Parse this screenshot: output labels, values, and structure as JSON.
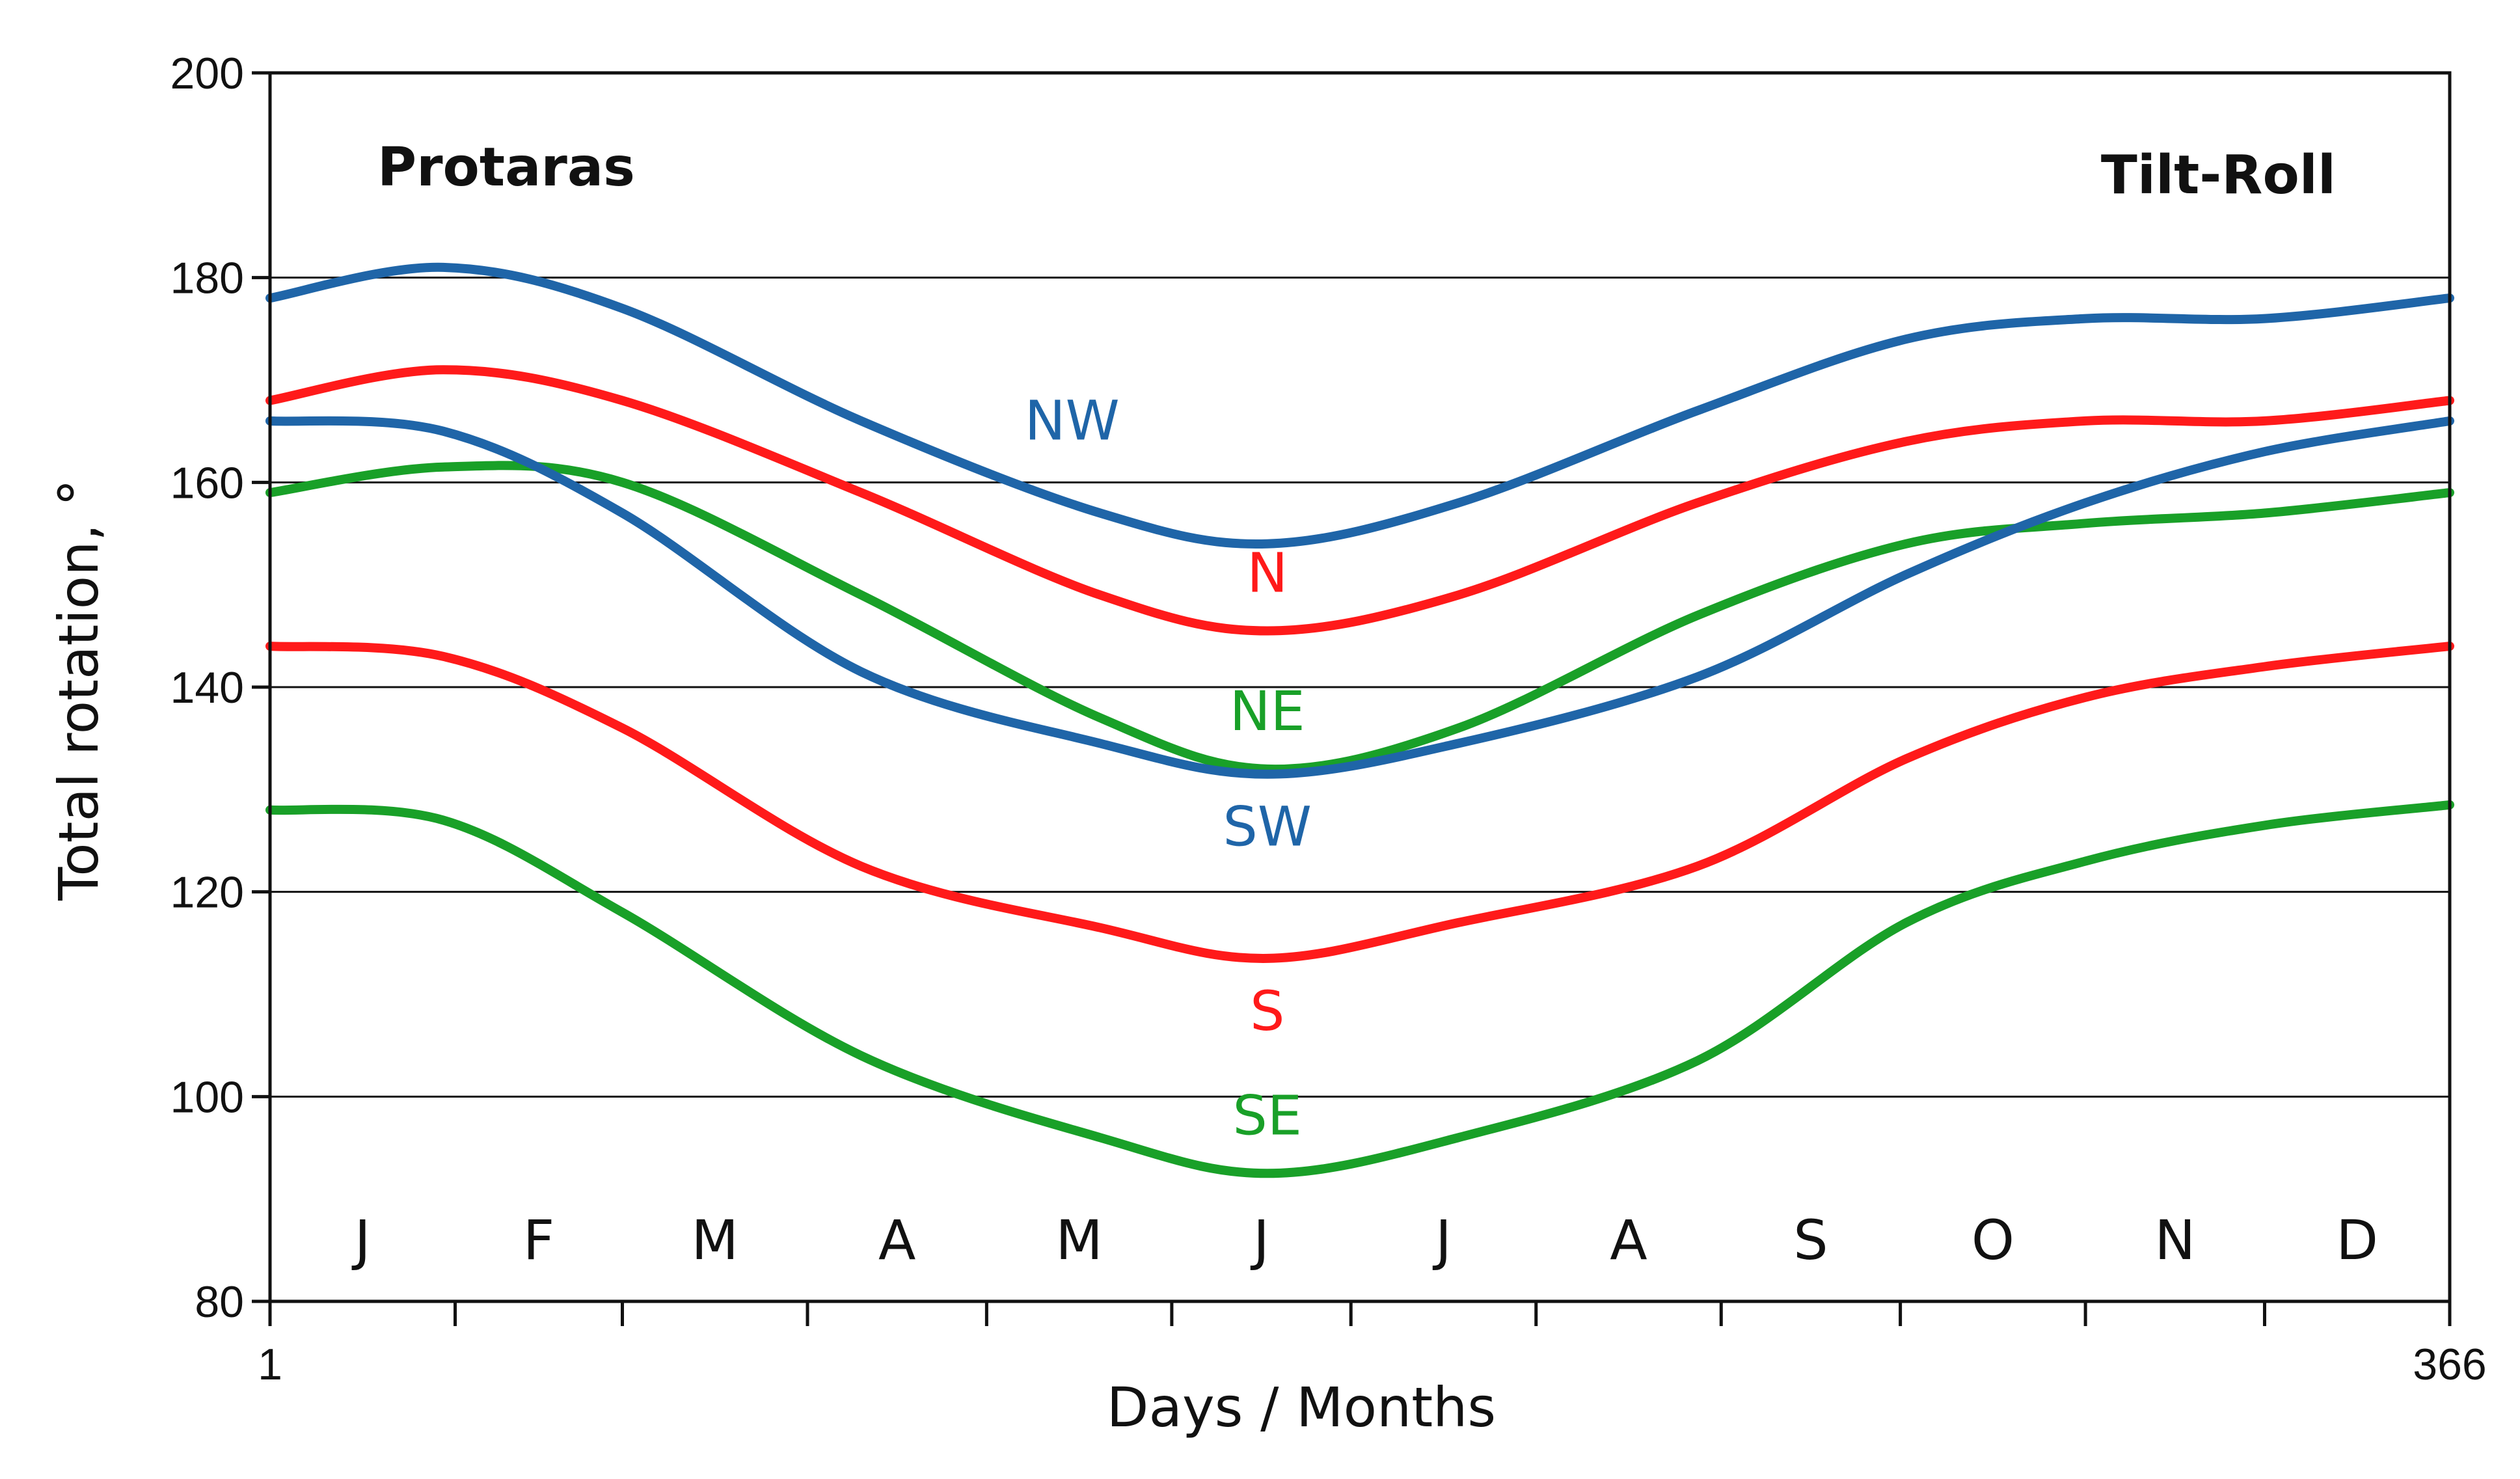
{
  "chart_data": {
    "type": "line",
    "title": "Protaras",
    "subtitle": "Tilt-Roll",
    "xlabel": "Days / Months",
    "ylabel": "Total rotation, °",
    "xlim": [
      1,
      366
    ],
    "ylim": [
      80,
      200
    ],
    "x_tick_labels": [
      "1",
      "366"
    ],
    "y_ticks": [
      80,
      100,
      120,
      140,
      160,
      180,
      200
    ],
    "month_labels": [
      "J",
      "F",
      "M",
      "A",
      "M",
      "J",
      "J",
      "A",
      "S",
      "O",
      "N",
      "D"
    ],
    "grid": true,
    "x": [
      1,
      30,
      60,
      100,
      140,
      168,
      200,
      240,
      275,
      305,
      335,
      366
    ],
    "series": [
      {
        "name": "NW",
        "color": "#1f65a8",
        "values": [
          178,
          181,
          177,
          166,
          157,
          154,
          158,
          167,
          174,
          176,
          176,
          178
        ]
      },
      {
        "name": "N",
        "color": "#ff1a1a",
        "values": [
          168,
          171,
          168,
          159,
          149,
          145.5,
          149,
          158,
          164,
          166,
          166,
          168
        ]
      },
      {
        "name": "NE",
        "color": "#19a028",
        "values": [
          159,
          161.5,
          160,
          149,
          137,
          132,
          136,
          147,
          154,
          156,
          157,
          159
        ]
      },
      {
        "name": "SW",
        "color": "#1f65a8",
        "values": [
          166,
          165,
          157,
          141.5,
          134.5,
          131.5,
          134.5,
          141,
          151,
          158,
          163,
          166
        ]
      },
      {
        "name": "S",
        "color": "#ff1a1a",
        "values": [
          144,
          143,
          136,
          122.5,
          116.5,
          113.5,
          117,
          122.5,
          133,
          139,
          142,
          144
        ]
      },
      {
        "name": "SE",
        "color": "#19a028",
        "values": [
          128,
          127,
          118,
          104,
          96,
          92.5,
          96,
          103.5,
          117,
          123,
          126.5,
          128.5
        ]
      }
    ]
  }
}
